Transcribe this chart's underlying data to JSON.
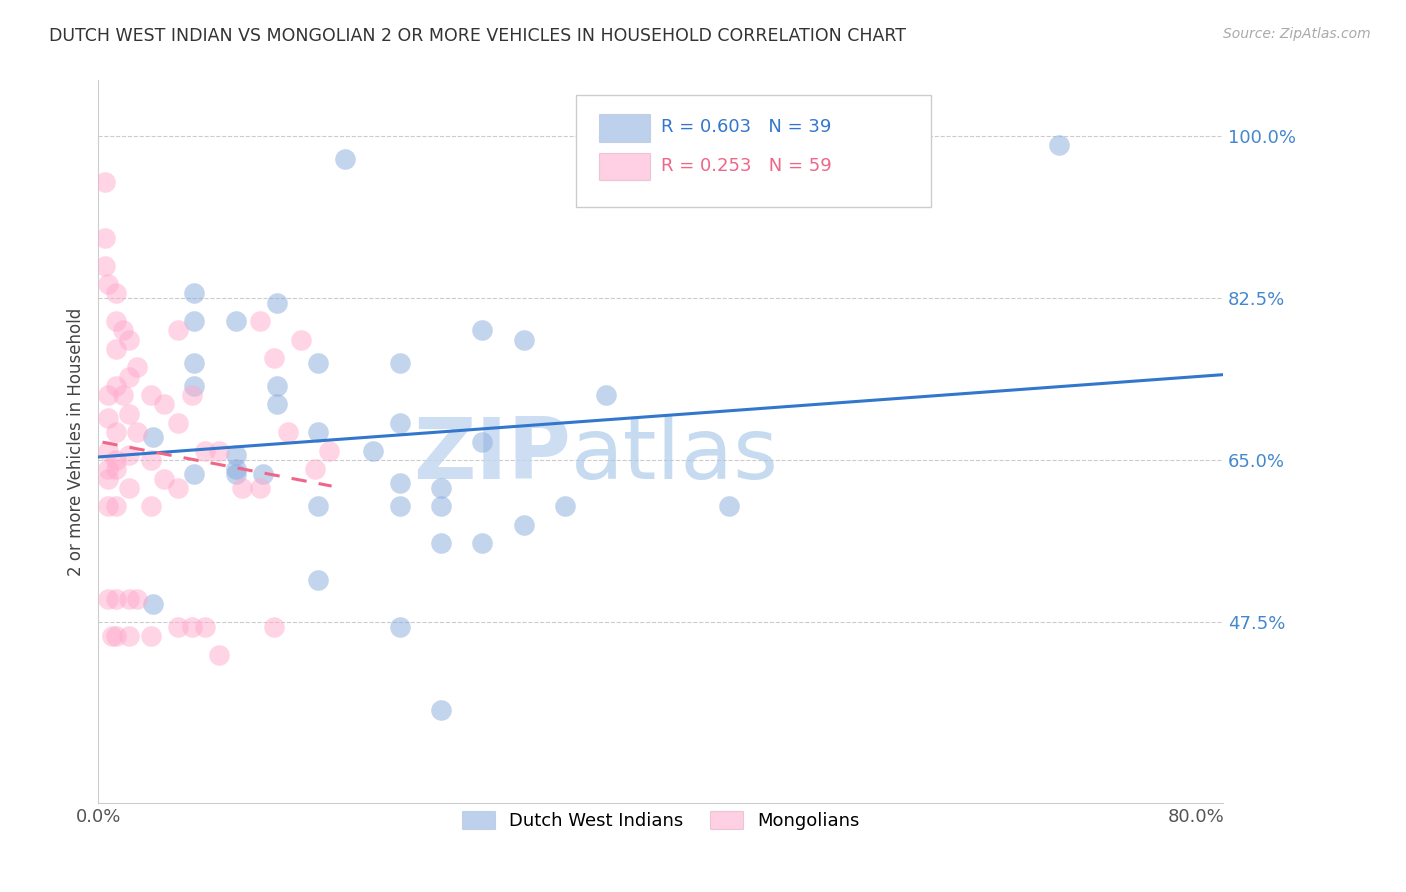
{
  "title": "DUTCH WEST INDIAN VS MONGOLIAN 2 OR MORE VEHICLES IN HOUSEHOLD CORRELATION CHART",
  "source": "Source: ZipAtlas.com",
  "ylabel": "2 or more Vehicles in Household",
  "ytick_labels": [
    "100.0%",
    "82.5%",
    "65.0%",
    "47.5%"
  ],
  "ytick_values": [
    1.0,
    0.825,
    0.65,
    0.475
  ],
  "xtick_labels": [
    "0.0%",
    "80.0%"
  ],
  "xtick_values": [
    0.0,
    0.8
  ],
  "xmin": 0.0,
  "xmax": 0.82,
  "ymin": 0.28,
  "ymax": 1.06,
  "legend_blue_r": "R = 0.603",
  "legend_blue_n": "N = 39",
  "legend_pink_r": "R = 0.253",
  "legend_pink_n": "N = 59",
  "blue_scatter_color": "#88aadd",
  "pink_scatter_color": "#ffaacc",
  "trendline_blue_color": "#3377cc",
  "trendline_pink_color": "#ee6688",
  "grid_color": "#cccccc",
  "watermark_zip": "ZIP",
  "watermark_atlas": "atlas",
  "watermark_color": "#ddeeff",
  "legend_bottom_labels": [
    "Dutch West Indians",
    "Mongolians"
  ],
  "blue_points_x": [
    0.18,
    0.04,
    0.07,
    0.07,
    0.1,
    0.12,
    0.1,
    0.1,
    0.13,
    0.13,
    0.04,
    0.07,
    0.1,
    0.07,
    0.16,
    0.16,
    0.22,
    0.22,
    0.25,
    0.25,
    0.37,
    0.25,
    0.28,
    0.22,
    0.22,
    0.16,
    0.16,
    0.22,
    0.25,
    0.46,
    0.7,
    0.28,
    0.31,
    0.28,
    0.34,
    0.31,
    0.2,
    0.13,
    0.07
  ],
  "blue_points_y": [
    0.975,
    0.675,
    0.73,
    0.635,
    0.635,
    0.635,
    0.655,
    0.64,
    0.73,
    0.71,
    0.495,
    0.8,
    0.8,
    0.755,
    0.755,
    0.68,
    0.755,
    0.69,
    0.62,
    0.6,
    0.72,
    0.56,
    0.56,
    0.625,
    0.6,
    0.6,
    0.52,
    0.47,
    0.38,
    0.6,
    0.99,
    0.79,
    0.78,
    0.67,
    0.6,
    0.58,
    0.66,
    0.82,
    0.83
  ],
  "pink_points_x": [
    0.005,
    0.005,
    0.005,
    0.007,
    0.007,
    0.007,
    0.007,
    0.007,
    0.007,
    0.007,
    0.007,
    0.01,
    0.013,
    0.013,
    0.013,
    0.013,
    0.013,
    0.013,
    0.013,
    0.013,
    0.013,
    0.013,
    0.018,
    0.018,
    0.022,
    0.022,
    0.022,
    0.022,
    0.022,
    0.022,
    0.022,
    0.028,
    0.028,
    0.028,
    0.038,
    0.038,
    0.038,
    0.038,
    0.048,
    0.048,
    0.058,
    0.058,
    0.058,
    0.058,
    0.068,
    0.068,
    0.078,
    0.078,
    0.088,
    0.088,
    0.105,
    0.118,
    0.118,
    0.128,
    0.128,
    0.138,
    0.148,
    0.158,
    0.168
  ],
  "pink_points_y": [
    0.95,
    0.89,
    0.86,
    0.84,
    0.72,
    0.695,
    0.66,
    0.64,
    0.63,
    0.6,
    0.5,
    0.46,
    0.83,
    0.8,
    0.77,
    0.73,
    0.68,
    0.65,
    0.64,
    0.6,
    0.5,
    0.46,
    0.79,
    0.72,
    0.78,
    0.74,
    0.7,
    0.655,
    0.62,
    0.5,
    0.46,
    0.75,
    0.68,
    0.5,
    0.72,
    0.65,
    0.6,
    0.46,
    0.71,
    0.63,
    0.79,
    0.69,
    0.62,
    0.47,
    0.72,
    0.47,
    0.66,
    0.47,
    0.66,
    0.44,
    0.62,
    0.8,
    0.62,
    0.76,
    0.47,
    0.68,
    0.78,
    0.64,
    0.66
  ]
}
